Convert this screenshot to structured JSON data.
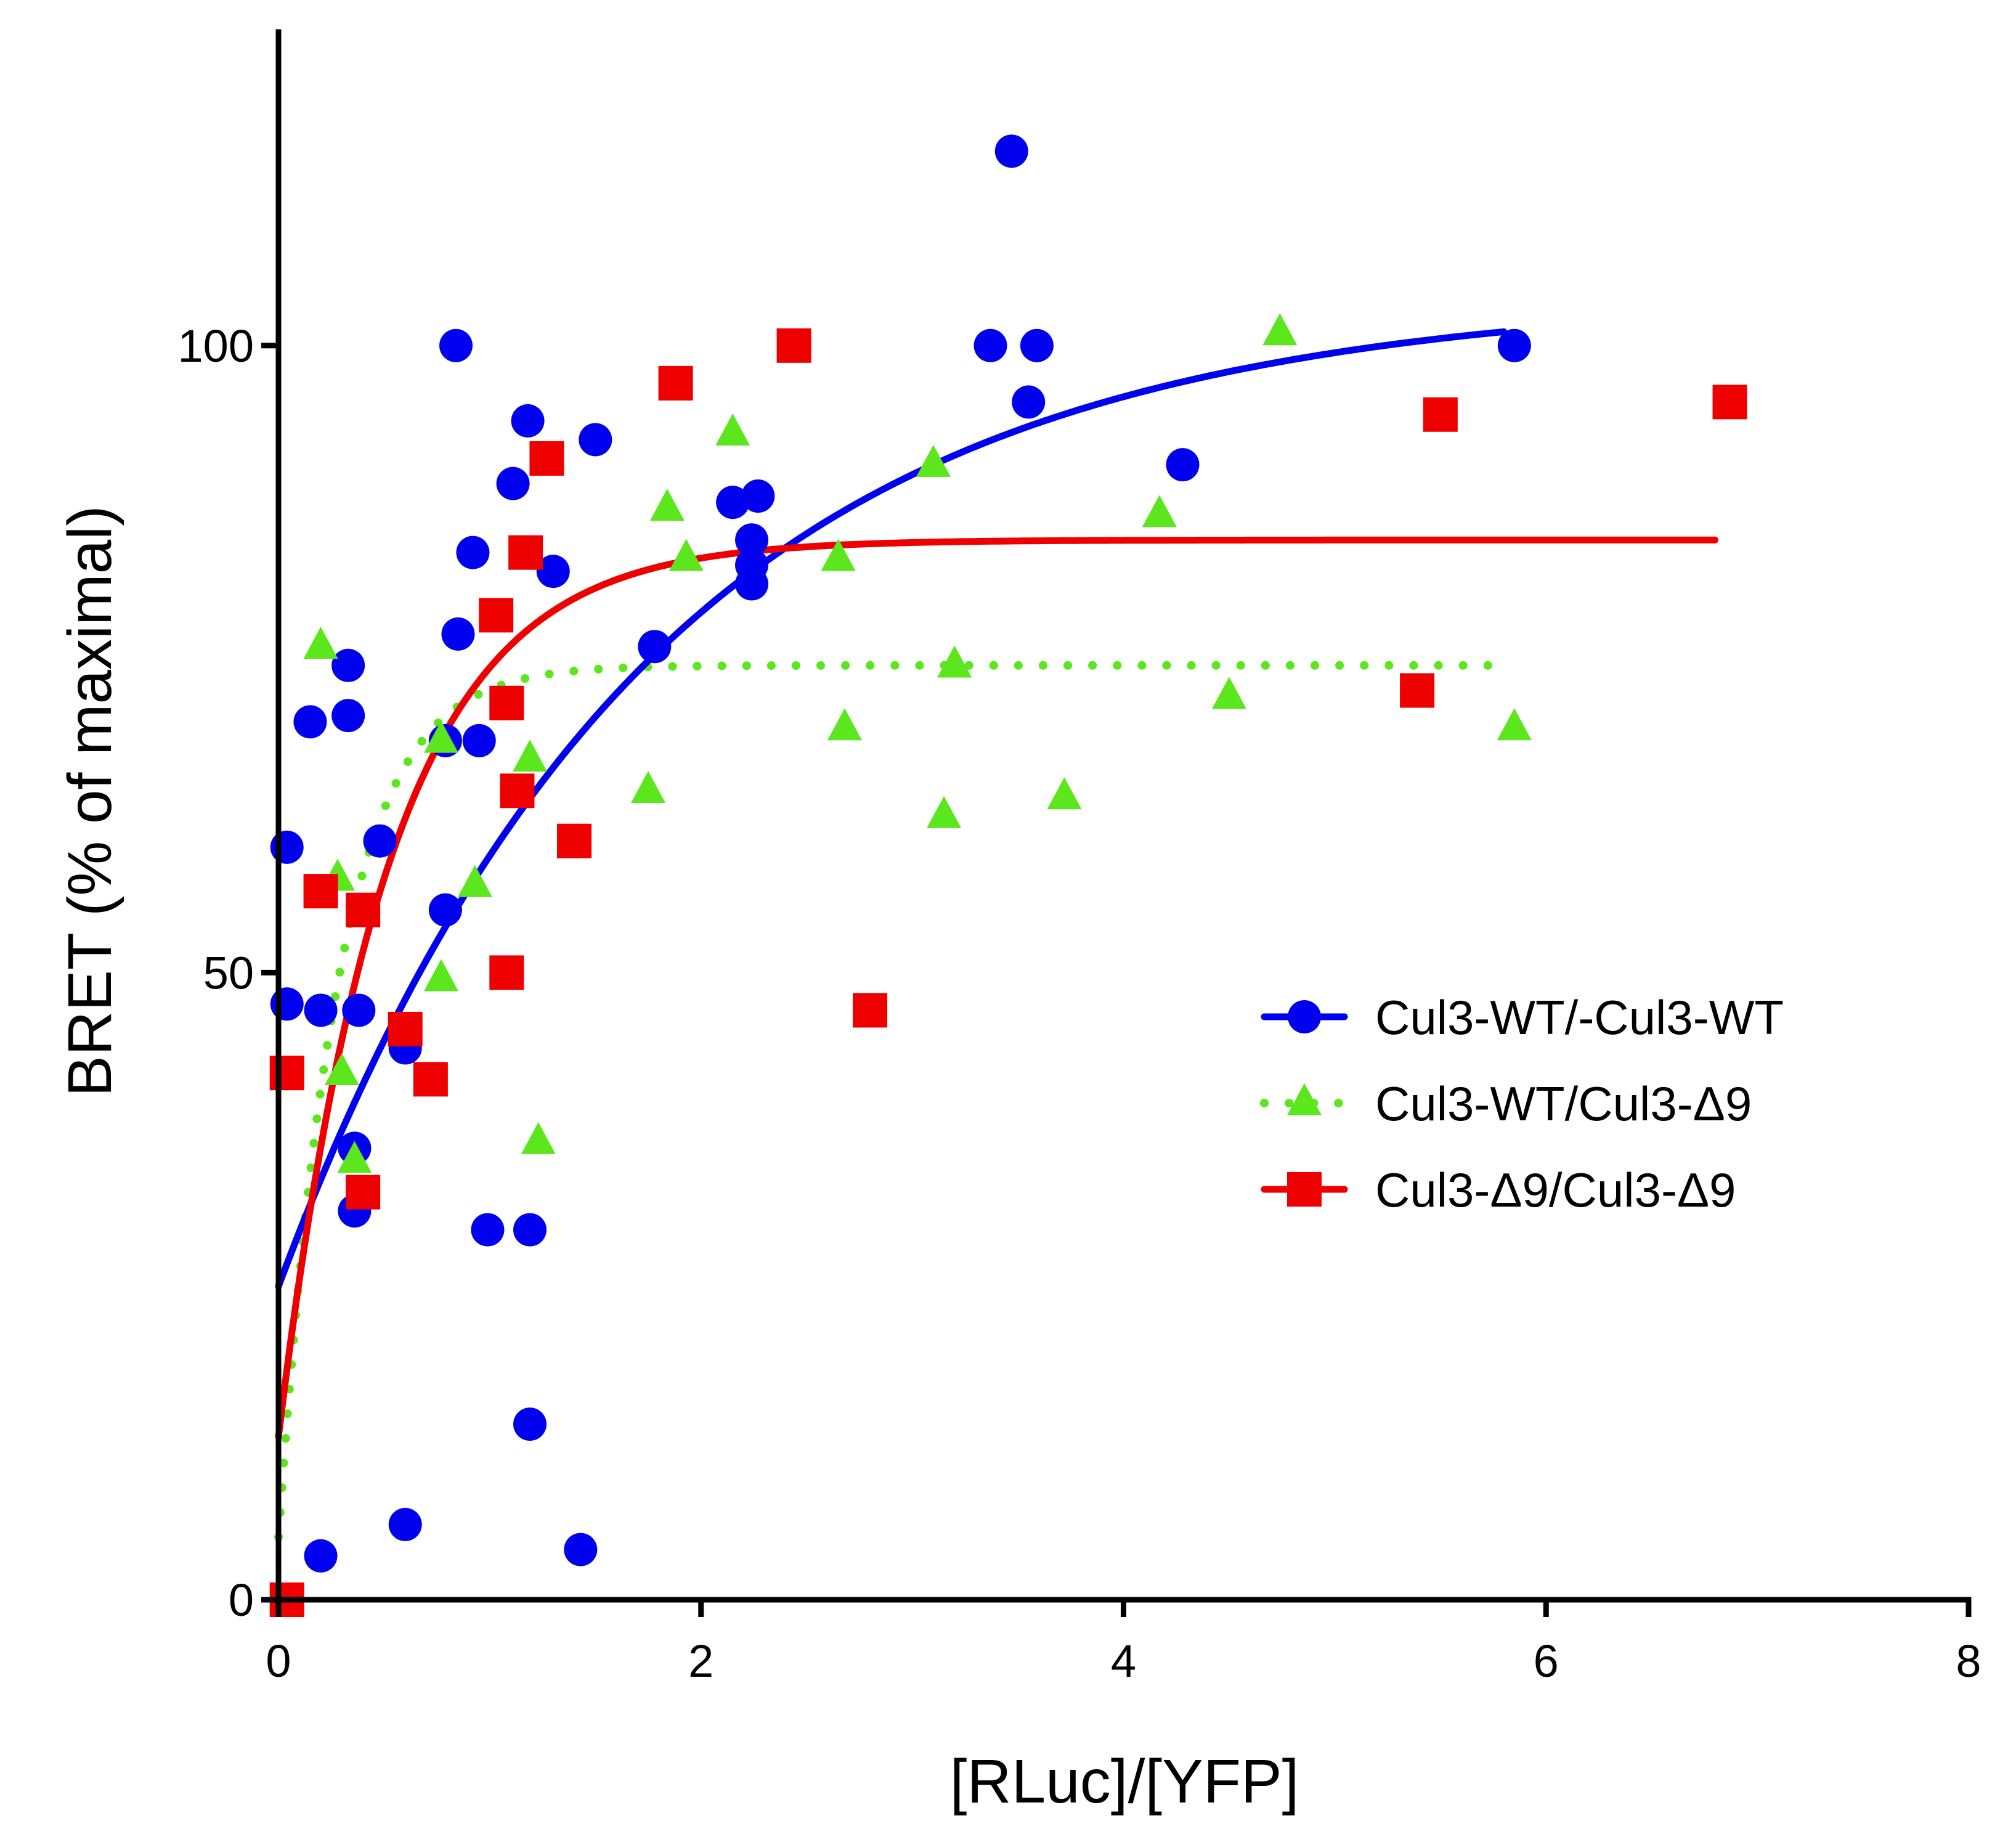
{
  "chart_data": {
    "type": "scatter",
    "title": "",
    "xlabel": "[RLuc]/[YFP]",
    "ylabel": "BRET (% of maximal)",
    "xlim": [
      0,
      8
    ],
    "ylim": [
      0,
      125
    ],
    "xticks": [
      0,
      2,
      4,
      6,
      8
    ],
    "yticks": [
      0,
      50,
      100
    ],
    "xtick_labels": [
      "0",
      "2",
      "4",
      "6",
      "8"
    ],
    "ytick_labels": [
      "0",
      "50",
      "100"
    ],
    "legend_position": "right-middle",
    "series": [
      {
        "name": "Cul3-WT/-Cul3-WT",
        "color": "#0000ee",
        "marker": "circle",
        "line_style": "solid",
        "points": [
          [
            0.04,
            60
          ],
          [
            0.04,
            47.5
          ],
          [
            0.15,
            70
          ],
          [
            0.2,
            47
          ],
          [
            0.2,
            3.5
          ],
          [
            0.33,
            74.5
          ],
          [
            0.33,
            70.5
          ],
          [
            0.36,
            36
          ],
          [
            0.36,
            31
          ],
          [
            0.38,
            47
          ],
          [
            0.48,
            60.5
          ],
          [
            0.6,
            44
          ],
          [
            0.6,
            6
          ],
          [
            0.79,
            68.5
          ],
          [
            0.79,
            55
          ],
          [
            0.84,
            100
          ],
          [
            0.85,
            77
          ],
          [
            0.92,
            83.5
          ],
          [
            0.95,
            68.5
          ],
          [
            0.99,
            29.5
          ],
          [
            1.11,
            89
          ],
          [
            1.18,
            94
          ],
          [
            1.19,
            29.5
          ],
          [
            1.19,
            14
          ],
          [
            1.3,
            82
          ],
          [
            1.43,
            4
          ],
          [
            1.5,
            92.5
          ],
          [
            1.78,
            76
          ],
          [
            2.15,
            87.5
          ],
          [
            2.24,
            84.5
          ],
          [
            2.24,
            82.5
          ],
          [
            2.24,
            81
          ],
          [
            2.27,
            88
          ],
          [
            3.37,
            100
          ],
          [
            3.47,
            115.5
          ],
          [
            3.55,
            95.5
          ],
          [
            3.59,
            100
          ],
          [
            4.28,
            90.5
          ],
          [
            5.85,
            100
          ]
        ],
        "fit": {
          "model": "one-site",
          "y0": 25,
          "bmax": 104,
          "k": 0.57,
          "x_range": [
            0,
            5.8
          ]
        }
      },
      {
        "name": "Cul3-WT/Cul3-Δ9",
        "color": "#5ce61e",
        "marker": "triangle",
        "line_style": "dotted",
        "points": [
          [
            0.2,
            76
          ],
          [
            0.28,
            57.5
          ],
          [
            0.3,
            42
          ],
          [
            0.36,
            35
          ],
          [
            0.77,
            68.5
          ],
          [
            0.77,
            49.5
          ],
          [
            0.93,
            57
          ],
          [
            1.19,
            67
          ],
          [
            1.23,
            36.5
          ],
          [
            1.75,
            64.5
          ],
          [
            1.84,
            87
          ],
          [
            1.93,
            83
          ],
          [
            2.15,
            93
          ],
          [
            2.65,
            83
          ],
          [
            2.68,
            69.5
          ],
          [
            3.1,
            90.5
          ],
          [
            3.15,
            62.5
          ],
          [
            3.2,
            74.5
          ],
          [
            3.72,
            64
          ],
          [
            4.17,
            86.5
          ],
          [
            4.5,
            72
          ],
          [
            4.74,
            101
          ],
          [
            5.85,
            69.5
          ]
        ],
        "fit": {
          "model": "one-site",
          "y0": 5,
          "bmax": 74.5,
          "k": 3.6,
          "x_range": [
            0,
            5.8
          ]
        }
      },
      {
        "name": "Cul3-Δ9/Cul3-Δ9",
        "color": "#ee0000",
        "marker": "square",
        "line_style": "solid",
        "points": [
          [
            0.04,
            0
          ],
          [
            0.04,
            42
          ],
          [
            0.2,
            56.5
          ],
          [
            0.4,
            55
          ],
          [
            0.4,
            32.5
          ],
          [
            0.6,
            45.5
          ],
          [
            0.72,
            41.5
          ],
          [
            1.03,
            78.5
          ],
          [
            1.08,
            71.5
          ],
          [
            1.08,
            50
          ],
          [
            1.13,
            64.5
          ],
          [
            1.17,
            83.5
          ],
          [
            1.27,
            91
          ],
          [
            1.4,
            60.5
          ],
          [
            1.88,
            97
          ],
          [
            2.44,
            100
          ],
          [
            2.8,
            47
          ],
          [
            5.39,
            72.5
          ],
          [
            5.5,
            94.5
          ],
          [
            6.87,
            95.5
          ]
        ],
        "fit": {
          "model": "one-site",
          "y0": 13,
          "bmax": 84.5,
          "k": 1.95,
          "x_range": [
            0,
            6.8
          ]
        }
      }
    ]
  }
}
